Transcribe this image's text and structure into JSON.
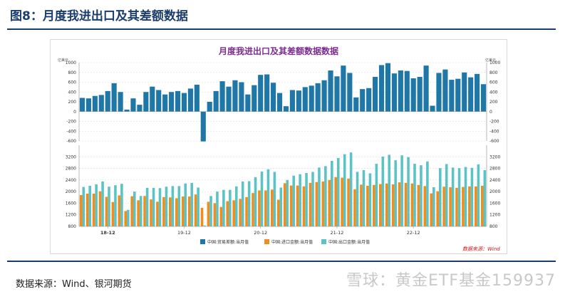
{
  "page": {
    "title": "图8：月度我进出口及其差额数据"
  },
  "source": "数据来源：Wind、银河期货",
  "watermark": "雪球：黄金ETF基金159937",
  "chart_data": {
    "type": "bar",
    "title": "月度我进出口及其差额数据数据",
    "unit_left": "亿美元",
    "unit_right": "亿美元",
    "data_source": "数据来源：Wind",
    "x_ticks": [
      "18-12",
      "19-12",
      "20-12",
      "21-12",
      "22-12"
    ],
    "x_tick_indices": [
      4,
      16,
      28,
      40,
      52
    ],
    "colors": {
      "balance": "#1f77a8",
      "import": "#f28c1c",
      "export": "#5cc3c4",
      "title": "#7b2d8e",
      "source": "#d6101a"
    },
    "panels": [
      {
        "name": "trade-balance",
        "ylim": [
          -600,
          1000
        ],
        "yticks": [
          -600,
          -400,
          -200,
          0,
          200,
          400,
          600,
          800,
          1000
        ],
        "series": [
          {
            "name": "中国:贸易差额:当月值",
            "values": [
              280,
              270,
              320,
              340,
              420,
              580,
              400,
              40,
              270,
              140,
              400,
              510,
              440,
              350,
              400,
              420,
              380,
              470,
              550,
              -610,
              200,
              420,
              620,
              510,
              640,
              600,
              350,
              540,
              750,
              760,
              590,
              380,
              110,
              440,
              430,
              500,
              530,
              580,
              640,
              840,
              720,
              940,
              790,
              290,
              460,
              480,
              710,
              950,
              990,
              780,
              840,
              830,
              680,
              710,
              940,
              120,
              790,
              860,
              650,
              670,
              800,
              700,
              770,
              560
            ]
          }
        ]
      },
      {
        "name": "imports-exports",
        "ylim": [
          800,
          3600
        ],
        "yticks": [
          800,
          1200,
          1600,
          2000,
          2400,
          2800,
          3200
        ],
        "series": [
          {
            "name": "中国:进口金额:当月值",
            "values": [
              1880,
              1930,
              1930,
              2010,
              1820,
              1640,
              1870,
              1330,
              1840,
              1700,
              1850,
              1730,
              1650,
              1810,
              1800,
              1770,
              1830,
              1830,
              1900,
              1440,
              1650,
              1600,
              1470,
              1670,
              1700,
              1750,
              1810,
              1950,
              2040,
              2040,
              2070,
              1720,
              2290,
              2210,
              2210,
              2180,
              2300,
              2330,
              2350,
              2400,
              2500,
              2480,
              2450,
              2080,
              2240,
              2200,
              2230,
              2260,
              2280,
              2250,
              2320,
              2300,
              2280,
              2230,
              2190,
              1940,
              2010,
              2170,
              2150,
              2130,
              2160,
              2180,
              2180,
              2200
            ]
          },
          {
            "name": "中国:出口金额:当月值",
            "values": [
              2160,
              2200,
              2250,
              2350,
              2170,
              2220,
              2270,
              1370,
              2000,
              1850,
              2130,
              2130,
              2120,
              2170,
              2190,
              2190,
              2280,
              2300,
              2140,
              830,
              1850,
              2000,
              2060,
              2060,
              2180,
              2350,
              2360,
              2500,
              2690,
              2770,
              2680,
              2140,
              2400,
              2550,
              2600,
              2640,
              2680,
              2830,
              2880,
              3060,
              3160,
              3290,
              3350,
              2680,
              2740,
              2630,
              2960,
              3210,
              3270,
              3080,
              3250,
              3190,
              2960,
              2910,
              3040,
              2150,
              2810,
              2950,
              2830,
              2810,
              2850,
              2820,
              2940,
              2740
            ]
          }
        ]
      }
    ]
  }
}
